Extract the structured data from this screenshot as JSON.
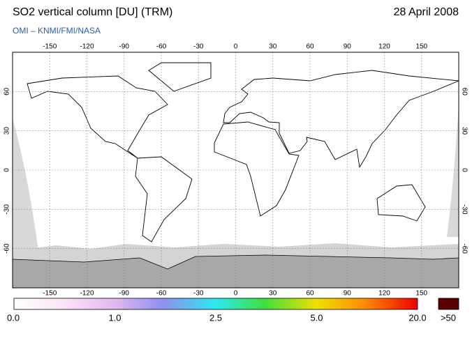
{
  "header": {
    "title": "SO2 vertical column [DU] (TRM)",
    "date": "28 April 2008",
    "subtitle": "OMI  –  KNMI/FMI/NASA"
  },
  "map": {
    "lon_ticks": [
      -150,
      -120,
      -90,
      -60,
      -30,
      0,
      30,
      60,
      90,
      120,
      150
    ],
    "lat_ticks": [
      60,
      30,
      0,
      -30,
      -60
    ]
  },
  "colorbar": {
    "labels": [
      "0.0",
      "1.0",
      "2.5",
      "5.0",
      "20.0"
    ],
    "overflow_label": ">50"
  }
}
